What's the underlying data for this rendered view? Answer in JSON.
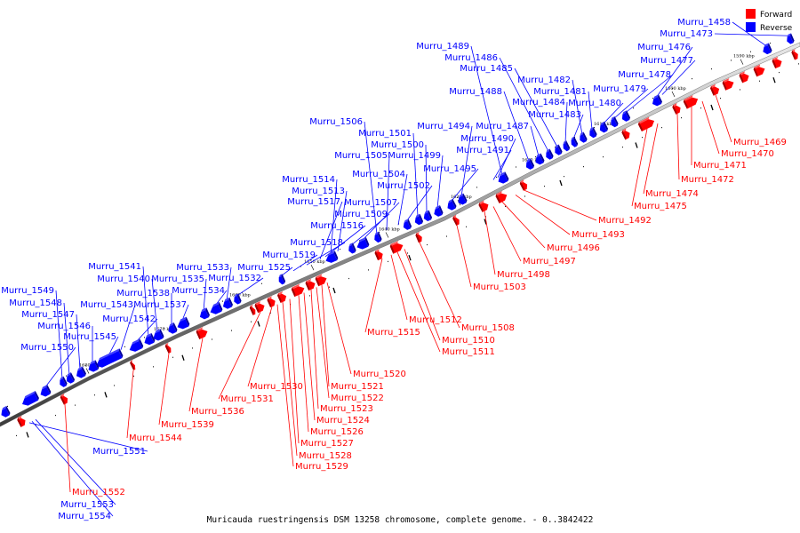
{
  "legend": {
    "forward_label": "Forward",
    "reverse_label": "Reverse",
    "forward_color": "#ff0000",
    "reverse_color": "#0000ff"
  },
  "caption": "Muricauda ruestringensis DSM 13258 chromosome, complete genome. - 0..3842422",
  "colors": {
    "forward": "#ff0000",
    "reverse": "#0000ff",
    "backbone": "#6e6e6e"
  },
  "scale": [
    "1590 kbp",
    "1600 kbp",
    "1610 kbp",
    "1620 kbp",
    "1630 kbp",
    "1640 kbp",
    "1650 kbp",
    "1660 kbp",
    "1670 kbp",
    "1680 kbp"
  ],
  "genes": {
    "reverse": [
      "Murru_1458",
      "Murru_1473",
      "Murru_1476",
      "Murru_1477",
      "Murru_1478",
      "Murru_1479",
      "Murru_1480",
      "Murru_1481",
      "Murru_1482",
      "Murru_1483",
      "Murru_1484",
      "Murru_1485",
      "Murru_1486",
      "Murru_1487",
      "Murru_1488",
      "Murru_1489",
      "Murru_1490",
      "Murru_1491",
      "Murru_1494",
      "Murru_1495",
      "Murru_1499",
      "Murru_1500",
      "Murru_1501",
      "Murru_1502",
      "Murru_1504",
      "Murru_1505",
      "Murru_1506",
      "Murru_1507",
      "Murru_1509",
      "Murru_1513",
      "Murru_1514",
      "Murru_1516",
      "Murru_1517",
      "Murru_1518",
      "Murru_1519",
      "Murru_1525",
      "Murru_1532",
      "Murru_1533",
      "Murru_1534",
      "Murru_1535",
      "Murru_1537",
      "Murru_1538",
      "Murru_1540",
      "Murru_1541",
      "Murru_1542",
      "Murru_1543",
      "Murru_1545",
      "Murru_1546",
      "Murru_1547",
      "Murru_1548",
      "Murru_1549",
      "Murru_1550",
      "Murru_1551",
      "Murru_1553",
      "Murru_1554"
    ],
    "forward": [
      "Murru_1469",
      "Murru_1470",
      "Murru_1471",
      "Murru_1472",
      "Murru_1474",
      "Murru_1475",
      "Murru_1492",
      "Murru_1493",
      "Murru_1496",
      "Murru_1497",
      "Murru_1498",
      "Murru_1503",
      "Murru_1508",
      "Murru_1510",
      "Murru_1511",
      "Murru_1512",
      "Murru_1515",
      "Murru_1520",
      "Murru_1521",
      "Murru_1522",
      "Murru_1523",
      "Murru_1524",
      "Murru_1526",
      "Murru_1527",
      "Murru_1528",
      "Murru_1529",
      "Murru_1530",
      "Murru_1531",
      "Murru_1536",
      "Murru_1539",
      "Murru_1544",
      "Murru_1552"
    ]
  }
}
